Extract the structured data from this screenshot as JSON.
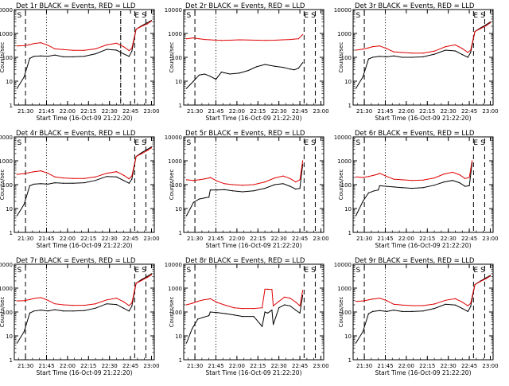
{
  "colors": {
    "events": "#000000",
    "lld": "#e00000",
    "background": "#ffffff",
    "axes": "#000000"
  },
  "y_tick_labels": [
    "1",
    "10",
    "100",
    "1000",
    "10000"
  ],
  "x_tick_labels": [
    "21:30",
    "21:45",
    "22:00",
    "22:15",
    "22:30",
    "22:45",
    "23:00"
  ],
  "chart_data": [
    {
      "type": "line",
      "title": "Det 1r BLACK = Events, RED = LLD",
      "xlabel": "Start Time (16-Oct-09 21:22:20)",
      "ylabel": "Counts/sec",
      "ylog": true,
      "xlim": [
        "21:22",
        "23:02"
      ],
      "ylim": [
        1,
        10000
      ],
      "x": [
        "21:24",
        "21:29",
        "21:33",
        "21:36",
        "21:41",
        "21:46",
        "21:51",
        "21:57",
        "22:04",
        "22:12",
        "22:20",
        "22:28",
        "22:35",
        "22:40",
        "22:44",
        "22:46",
        "22:49",
        "22:53",
        "22:57",
        "23:00"
      ],
      "series": [
        {
          "name": "Events",
          "color": "#000000",
          "values": [
            5,
            15,
            90,
            110,
            115,
            110,
            125,
            105,
            105,
            110,
            140,
            215,
            200,
            140,
            110,
            180,
            1500,
            2100,
            2800,
            3500
          ]
        },
        {
          "name": "LLD",
          "color": "#e00000",
          "values": [
            300,
            310,
            340,
            375,
            410,
            320,
            225,
            210,
            195,
            195,
            225,
            330,
            390,
            280,
            190,
            240,
            1500,
            2000,
            2500,
            3300
          ]
        }
      ],
      "markers": {
        "dashed": [
          "21:30",
          "22:38",
          "22:48",
          "22:56"
        ],
        "dotted": [
          "21:45",
          "22:38"
        ],
        "letters": [
          {
            "x": "21:24",
            "text": "S"
          },
          {
            "x": "22:48",
            "text": "E"
          },
          {
            "x": "22:53",
            "text": "S"
          }
        ]
      }
    },
    {
      "type": "line",
      "title": "Det 2r BLACK = Events, RED = LLD",
      "xlabel": "Start Time (16-Oct-09 21:22:20)",
      "ylabel": "Counts/sec",
      "ylog": true,
      "xlim": [
        "21:22",
        "23:02"
      ],
      "ylim": [
        1,
        10000
      ],
      "x": [
        "21:24",
        "21:29",
        "21:33",
        "21:37",
        "21:41",
        "21:45",
        "21:49",
        "21:55",
        "22:02",
        "22:08",
        "22:14",
        "22:20",
        "22:27",
        "22:33",
        "22:38",
        "22:41",
        "22:44",
        "22:47"
      ],
      "series": [
        {
          "name": "Events",
          "color": "#000000",
          "values": [
            5,
            10,
            18,
            20,
            16,
            12,
            24,
            20,
            22,
            28,
            40,
            50,
            42,
            38,
            32,
            30,
            35,
            60
          ]
        },
        {
          "name": "LLD",
          "color": "#e00000",
          "values": [
            600,
            650,
            600,
            560,
            540,
            520,
            510,
            520,
            540,
            530,
            520,
            510,
            520,
            540,
            560,
            580,
            600,
            900
          ]
        }
      ],
      "markers": {
        "dashed": [
          "21:30",
          "22:48",
          "22:56"
        ],
        "dotted": [
          "21:45"
        ],
        "letters": [
          {
            "x": "21:24",
            "text": "S"
          },
          {
            "x": "22:48",
            "text": "E"
          },
          {
            "x": "22:53",
            "text": "S"
          }
        ]
      }
    },
    {
      "type": "line",
      "title": "Det 3r BLACK = Events, RED = LLD",
      "xlabel": "Start Time (16-Oct-09 21:22:20)",
      "ylabel": "Counts/sec",
      "ylog": true,
      "xlim": [
        "21:22",
        "23:02"
      ],
      "ylim": [
        1,
        10000
      ],
      "x": [
        "21:24",
        "21:29",
        "21:33",
        "21:36",
        "21:41",
        "21:46",
        "21:51",
        "21:57",
        "22:04",
        "22:12",
        "22:20",
        "22:28",
        "22:35",
        "22:40",
        "22:44",
        "22:46",
        "22:49",
        "22:53",
        "22:57",
        "23:00"
      ],
      "series": [
        {
          "name": "Events",
          "color": "#000000",
          "values": [
            5,
            15,
            85,
            100,
            110,
            105,
            115,
            100,
            100,
            105,
            135,
            200,
            185,
            130,
            100,
            160,
            1200,
            1700,
            2300,
            3000
          ]
        },
        {
          "name": "LLD",
          "color": "#e00000",
          "values": [
            200,
            220,
            250,
            280,
            300,
            230,
            170,
            160,
            150,
            150,
            180,
            280,
            330,
            230,
            160,
            200,
            1200,
            1600,
            2100,
            2800
          ]
        }
      ],
      "markers": {
        "dashed": [
          "21:30",
          "22:48",
          "22:56"
        ],
        "dotted": [
          "21:45"
        ],
        "letters": [
          {
            "x": "21:24",
            "text": "S"
          },
          {
            "x": "22:48",
            "text": "E"
          },
          {
            "x": "22:53",
            "text": "S"
          }
        ]
      }
    },
    {
      "type": "line",
      "title": "Det 4r BLACK = Events, RED = LLD",
      "xlabel": "Start Time (16-Oct-09 21:22:20)",
      "ylabel": "Counts/sec",
      "ylog": true,
      "xlim": [
        "21:22",
        "23:02"
      ],
      "ylim": [
        1,
        10000
      ],
      "x": [
        "21:24",
        "21:29",
        "21:33",
        "21:36",
        "21:41",
        "21:46",
        "21:51",
        "21:57",
        "22:04",
        "22:12",
        "22:20",
        "22:28",
        "22:35",
        "22:40",
        "22:44",
        "22:46",
        "22:49",
        "22:53",
        "22:57",
        "23:00"
      ],
      "series": [
        {
          "name": "Events",
          "color": "#000000",
          "values": [
            5,
            15,
            90,
            105,
            110,
            105,
            120,
            115,
            115,
            120,
            150,
            220,
            210,
            150,
            115,
            170,
            1500,
            2200,
            3000,
            3800
          ]
        },
        {
          "name": "LLD",
          "color": "#e00000",
          "values": [
            270,
            290,
            320,
            350,
            380,
            300,
            210,
            190,
            180,
            180,
            210,
            300,
            350,
            250,
            175,
            230,
            1500,
            2000,
            2700,
            3500
          ]
        }
      ],
      "markers": {
        "dashed": [
          "21:30",
          "22:48",
          "22:56"
        ],
        "dotted": [
          "21:45"
        ],
        "letters": [
          {
            "x": "21:24",
            "text": "S"
          },
          {
            "x": "22:48",
            "text": "E"
          },
          {
            "x": "22:53",
            "text": "S"
          }
        ]
      }
    },
    {
      "type": "line",
      "title": "Det 5r BLACK = Events, RED = LLD",
      "xlabel": "Start Time (16-Oct-09 21:22:20)",
      "ylabel": "Counts/sec",
      "ylog": true,
      "xlim": [
        "21:22",
        "23:02"
      ],
      "ylim": [
        1,
        10000
      ],
      "x": [
        "21:24",
        "21:29",
        "21:33",
        "21:37",
        "21:40",
        "21:41",
        "21:46",
        "21:51",
        "21:57",
        "22:04",
        "22:12",
        "22:20",
        "22:27",
        "22:33",
        "22:38",
        "22:42",
        "22:45",
        "22:47"
      ],
      "series": [
        {
          "name": "Events",
          "color": "#000000",
          "values": [
            5,
            18,
            25,
            28,
            30,
            60,
            60,
            62,
            55,
            50,
            55,
            70,
            100,
            110,
            85,
            65,
            70,
            700
          ]
        },
        {
          "name": "LLD",
          "color": "#e00000",
          "values": [
            160,
            150,
            160,
            175,
            190,
            200,
            140,
            110,
            100,
            95,
            100,
            130,
            190,
            230,
            180,
            130,
            160,
            1000
          ]
        }
      ],
      "markers": {
        "dashed": [
          "21:30",
          "22:48",
          "22:56"
        ],
        "dotted": [
          "21:45"
        ],
        "letters": [
          {
            "x": "21:24",
            "text": "S"
          },
          {
            "x": "22:48",
            "text": "E"
          },
          {
            "x": "22:53",
            "text": "S"
          }
        ]
      }
    },
    {
      "type": "line",
      "title": "Det 6r BLACK = Events, RED = LLD",
      "xlabel": "Start Time (16-Oct-09 21:22:20)",
      "ylabel": "Counts/sec",
      "ylog": true,
      "xlim": [
        "21:22",
        "23:02"
      ],
      "ylim": [
        1,
        10000
      ],
      "x": [
        "21:24",
        "21:29",
        "21:33",
        "21:37",
        "21:40",
        "21:41",
        "21:46",
        "21:51",
        "21:57",
        "22:04",
        "22:12",
        "22:20",
        "22:27",
        "22:33",
        "22:38",
        "22:42",
        "22:45",
        "22:47"
      ],
      "series": [
        {
          "name": "Events",
          "color": "#000000",
          "values": [
            5,
            20,
            45,
            55,
            60,
            90,
            85,
            80,
            75,
            70,
            75,
            95,
            130,
            150,
            120,
            85,
            90,
            800
          ]
        },
        {
          "name": "LLD",
          "color": "#e00000",
          "values": [
            210,
            200,
            220,
            250,
            280,
            300,
            220,
            170,
            160,
            150,
            155,
            190,
            280,
            330,
            260,
            180,
            200,
            1000
          ]
        }
      ],
      "markers": {
        "dashed": [
          "21:30",
          "22:48",
          "22:56"
        ],
        "dotted": [
          "21:45"
        ],
        "letters": [
          {
            "x": "21:24",
            "text": "S"
          },
          {
            "x": "22:48",
            "text": "E"
          },
          {
            "x": "22:53",
            "text": "S"
          }
        ]
      }
    },
    {
      "type": "line",
      "title": "Det 7r BLACK = Events, RED = LLD",
      "xlabel": "Start Time (16-Oct-09 21:22:20)",
      "ylabel": "Counts/sec",
      "ylog": true,
      "xlim": [
        "21:22",
        "23:02"
      ],
      "ylim": [
        1,
        10000
      ],
      "x": [
        "21:24",
        "21:29",
        "21:33",
        "21:36",
        "21:41",
        "21:46",
        "21:51",
        "21:57",
        "22:04",
        "22:12",
        "22:20",
        "22:28",
        "22:35",
        "22:40",
        "22:44",
        "22:46",
        "22:49",
        "22:53",
        "22:57",
        "23:00"
      ],
      "series": [
        {
          "name": "Events",
          "color": "#000000",
          "values": [
            5,
            15,
            90,
            110,
            120,
            110,
            125,
            110,
            110,
            115,
            145,
            220,
            205,
            145,
            110,
            175,
            1600,
            2300,
            3100,
            4000
          ]
        },
        {
          "name": "LLD",
          "color": "#e00000",
          "values": [
            290,
            300,
            330,
            370,
            400,
            310,
            220,
            200,
            190,
            190,
            220,
            320,
            380,
            270,
            185,
            240,
            1600,
            2100,
            2800,
            3600
          ]
        }
      ],
      "markers": {
        "dashed": [
          "21:30",
          "22:48",
          "22:56"
        ],
        "dotted": [
          "21:45"
        ],
        "letters": [
          {
            "x": "21:24",
            "text": "S"
          },
          {
            "x": "22:48",
            "text": "E"
          },
          {
            "x": "22:53",
            "text": "S"
          }
        ]
      }
    },
    {
      "type": "line",
      "title": "Det 8r BLACK = Events, RED = LLD",
      "xlabel": "Start Time (16-Oct-09 21:22:20)",
      "ylabel": "Counts/sec",
      "ylog": true,
      "xlim": [
        "21:22",
        "23:02"
      ],
      "ylim": [
        1,
        10000
      ],
      "x": [
        "21:24",
        "21:28",
        "21:32",
        "21:36",
        "21:40",
        "21:41",
        "21:46",
        "21:52",
        "21:58",
        "22:04",
        "22:12",
        "22:18",
        "22:20",
        "22:22",
        "22:25",
        "22:26",
        "22:30",
        "22:34",
        "22:38",
        "22:42",
        "22:45",
        "22:47"
      ],
      "series": [
        {
          "name": "Events",
          "color": "#000000",
          "values": [
            5,
            20,
            50,
            60,
            70,
            100,
            95,
            85,
            75,
            65,
            65,
            25,
            100,
            90,
            120,
            30,
            150,
            200,
            180,
            120,
            90,
            500
          ]
        },
        {
          "name": "LLD",
          "color": "#e00000",
          "values": [
            200,
            230,
            280,
            320,
            350,
            360,
            250,
            190,
            150,
            140,
            140,
            150,
            900,
            900,
            880,
            180,
            280,
            420,
            380,
            260,
            180,
            800
          ]
        }
      ],
      "markers": {
        "dashed": [
          "21:30",
          "22:48",
          "22:56"
        ],
        "dotted": [
          "21:45"
        ],
        "letters": [
          {
            "x": "21:24",
            "text": "S"
          },
          {
            "x": "22:48",
            "text": "E"
          },
          {
            "x": "22:53",
            "text": "S"
          }
        ]
      }
    },
    {
      "type": "line",
      "title": "Det 9r BLACK = Events, RED = LLD",
      "xlabel": "Start Time (16-Oct-09 21:22:20)",
      "ylabel": "Counts/sec",
      "ylog": true,
      "xlim": [
        "21:22",
        "23:02"
      ],
      "ylim": [
        1,
        10000
      ],
      "x": [
        "21:24",
        "21:29",
        "21:33",
        "21:36",
        "21:41",
        "21:46",
        "21:51",
        "21:57",
        "22:04",
        "22:12",
        "22:20",
        "22:28",
        "22:35",
        "22:40",
        "22:44",
        "22:46",
        "22:49",
        "22:53",
        "22:57",
        "23:00"
      ],
      "series": [
        {
          "name": "Events",
          "color": "#000000",
          "values": [
            5,
            15,
            85,
            105,
            115,
            105,
            120,
            105,
            105,
            110,
            140,
            210,
            195,
            140,
            105,
            170,
            1400,
            2000,
            2700,
            3400
          ]
        },
        {
          "name": "LLD",
          "color": "#e00000",
          "values": [
            280,
            290,
            320,
            350,
            380,
            300,
            210,
            195,
            185,
            185,
            215,
            310,
            360,
            260,
            180,
            230,
            1400,
            1900,
            2500,
            3200
          ]
        }
      ],
      "markers": {
        "dashed": [
          "21:30",
          "22:48",
          "22:56"
        ],
        "dotted": [
          "21:45"
        ],
        "letters": [
          {
            "x": "21:24",
            "text": "S"
          },
          {
            "x": "22:48",
            "text": "E"
          },
          {
            "x": "22:53",
            "text": "S"
          }
        ]
      }
    }
  ]
}
